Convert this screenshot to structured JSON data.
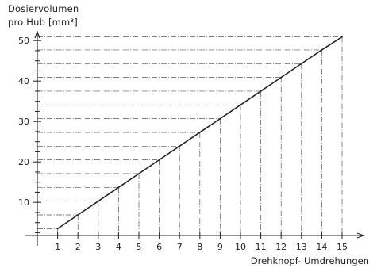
{
  "chart_data": {
    "type": "line",
    "ylabel": [
      "Dosiervolumen",
      "pro Hub [mm³]"
    ],
    "xlabel": "Drehknopf- Umdrehungen",
    "x": [
      1,
      2,
      3,
      4,
      5,
      6,
      7,
      8,
      9,
      10,
      11,
      12,
      13,
      14,
      15
    ],
    "y": [
      3.5,
      6.9,
      10.3,
      13.7,
      17.1,
      20.5,
      23.9,
      27.3,
      30.7,
      34.1,
      37.5,
      40.9,
      44.3,
      47.7,
      50.9
    ],
    "xticks": [
      "1",
      "2",
      "3",
      "4",
      "5",
      "6",
      "7",
      "8",
      "9",
      "10",
      "11",
      "12",
      "13",
      "14",
      "15"
    ],
    "yticks": [
      "10",
      "20",
      "30",
      "40",
      "50"
    ],
    "xlim": [
      0,
      16.3
    ],
    "ylim": [
      -2,
      55
    ],
    "grid": "dash-dot guide lines from each point to both axes",
    "line_color": "#222222"
  }
}
